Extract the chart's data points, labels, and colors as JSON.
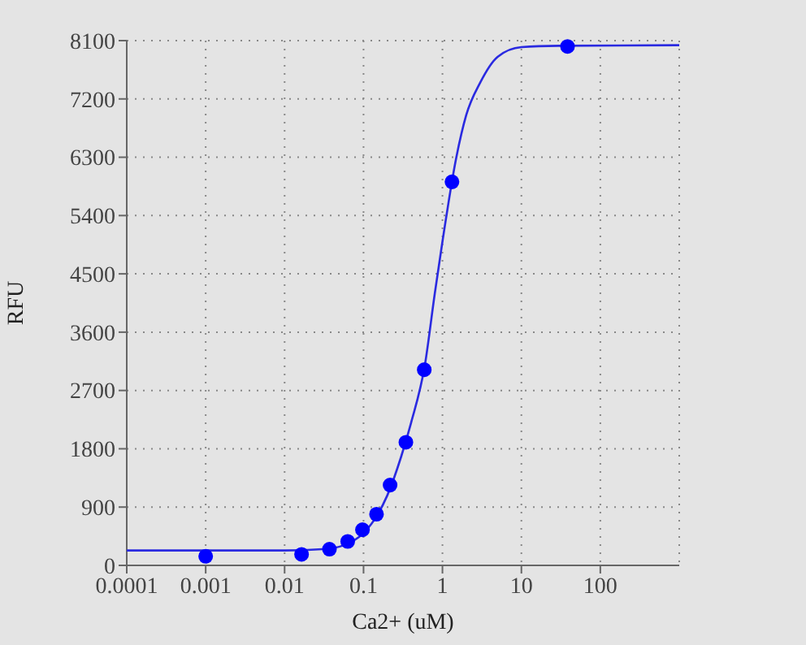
{
  "chart_data": {
    "type": "scatter",
    "xlabel": "Ca2+ (uM)",
    "ylabel": "RFU",
    "log": "x",
    "grid": true,
    "xlim": [
      0.0001,
      1000
    ],
    "xticks": [
      0.0001,
      0.001,
      0.01,
      0.1,
      1,
      10,
      100
    ],
    "ylim": [
      0,
      8100
    ],
    "yticks": [
      0,
      900,
      1800,
      2700,
      3600,
      4500,
      5400,
      6300,
      7200,
      8100
    ],
    "series": [
      {
        "type": "line",
        "color": "#2a2ae0",
        "marker": "none",
        "line_style": "solid",
        "x": [
          0.0001,
          0.01,
          0.03,
          0.05,
          0.1,
          0.15,
          0.2,
          0.3,
          0.4,
          0.6,
          0.8,
          1,
          1.5,
          2,
          3,
          5,
          10,
          30,
          1000
        ],
        "values": [
          230,
          230,
          250,
          290,
          500,
          780,
          1080,
          1680,
          2200,
          3100,
          4200,
          5000,
          6300,
          6950,
          7450,
          7850,
          8000,
          8020,
          8030
        ]
      },
      {
        "color": "#0000ff",
        "marker": "circle",
        "x": [
          0.001,
          0.0164,
          0.037,
          0.063,
          0.097,
          0.146,
          0.217,
          0.344,
          0.588,
          1.32,
          38.4
        ],
        "values": [
          140,
          170,
          250,
          370,
          550,
          790,
          1240,
          1900,
          3020,
          5920,
          8010
        ]
      }
    ]
  }
}
